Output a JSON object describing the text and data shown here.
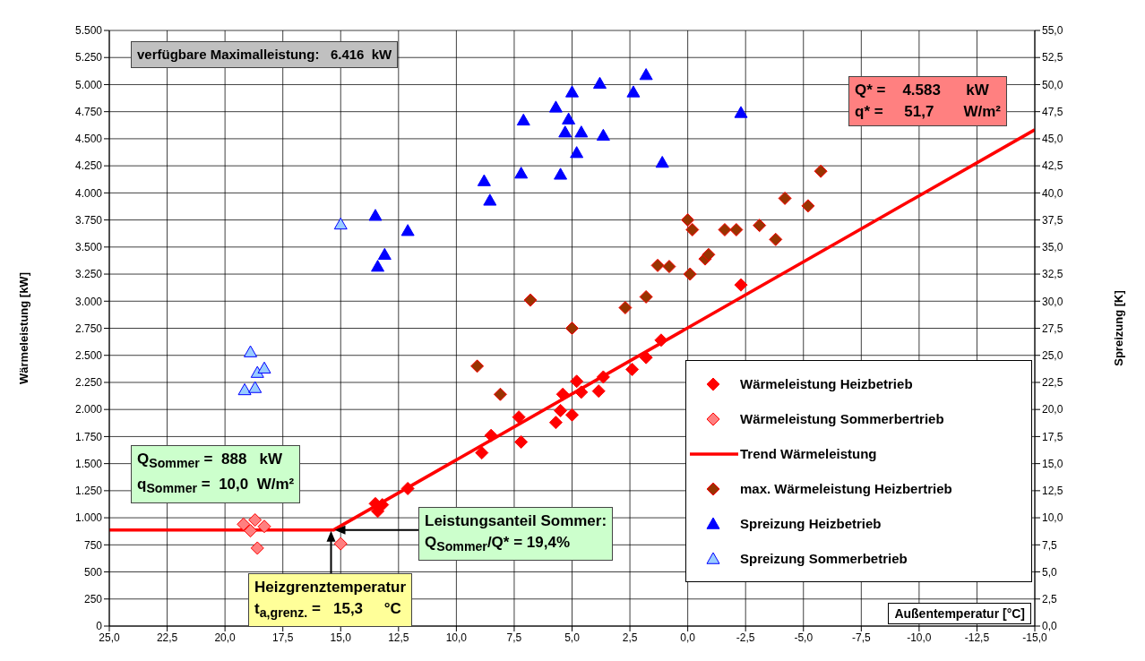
{
  "chart_data": {
    "type": "scatter",
    "xlabel": "Außentemperatur [°C]",
    "ylabel": "Wärmeleistung [kW]",
    "y2label": "Spreizung [K]",
    "xlim": [
      25,
      -15
    ],
    "ylim": [
      0,
      5500
    ],
    "y2lim": [
      0,
      55
    ],
    "xticks": [
      {
        "value": 25,
        "label": "25,0"
      },
      {
        "value": 22.5,
        "label": "22,5"
      },
      {
        "value": 20,
        "label": "20,0"
      },
      {
        "value": 17.5,
        "label": "17,5"
      },
      {
        "value": 15,
        "label": "15,0"
      },
      {
        "value": 12.5,
        "label": "12,5"
      },
      {
        "value": 10,
        "label": "10,0"
      },
      {
        "value": 7.5,
        "label": "7,5"
      },
      {
        "value": 5,
        "label": "5,0"
      },
      {
        "value": 2.5,
        "label": "2,5"
      },
      {
        "value": 0,
        "label": "0,0"
      },
      {
        "value": -2.5,
        "label": "-2,5"
      },
      {
        "value": -5,
        "label": "-5,0"
      },
      {
        "value": -7.5,
        "label": "-7,5"
      },
      {
        "value": -10,
        "label": "-10,0"
      },
      {
        "value": -12.5,
        "label": "-12,5"
      },
      {
        "value": -15,
        "label": "-15,0"
      }
    ],
    "yticks": [
      0,
      250,
      500,
      750,
      {
        "value": 1000,
        "label": "1.000"
      },
      {
        "value": 1250,
        "label": "1.250"
      },
      {
        "value": 1500,
        "label": "1.500"
      },
      {
        "value": 1750,
        "label": "1.750"
      },
      {
        "value": 2000,
        "label": "2.000"
      },
      {
        "value": 2250,
        "label": "2.250"
      },
      {
        "value": 2500,
        "label": "2.500"
      },
      {
        "value": 2750,
        "label": "2.750"
      },
      {
        "value": 3000,
        "label": "3.000"
      },
      {
        "value": 3250,
        "label": "3.250"
      },
      {
        "value": 3500,
        "label": "3.500"
      },
      {
        "value": 3750,
        "label": "3.750"
      },
      {
        "value": 4000,
        "label": "4.000"
      },
      {
        "value": 4250,
        "label": "4.250"
      },
      {
        "value": 4500,
        "label": "4.500"
      },
      {
        "value": 4750,
        "label": "4.750"
      },
      {
        "value": 5000,
        "label": "5.000"
      },
      {
        "value": 5250,
        "label": "5.250"
      },
      {
        "value": 5500,
        "label": "5.500"
      }
    ],
    "y2ticks": [
      {
        "value": 0,
        "label": "0,0"
      },
      {
        "value": 2.5,
        "label": "2,5"
      },
      {
        "value": 5,
        "label": "5,0"
      },
      {
        "value": 7.5,
        "label": "7,5"
      },
      {
        "value": 10,
        "label": "10,0"
      },
      {
        "value": 12.5,
        "label": "12,5"
      },
      {
        "value": 15,
        "label": "15,0"
      },
      {
        "value": 17.5,
        "label": "17,5"
      },
      {
        "value": 20,
        "label": "20,0"
      },
      {
        "value": 22.5,
        "label": "22,5"
      },
      {
        "value": 25,
        "label": "25,0"
      },
      {
        "value": 27.5,
        "label": "27,5"
      },
      {
        "value": 30,
        "label": "30,0"
      },
      {
        "value": 32.5,
        "label": "32,5"
      },
      {
        "value": 35,
        "label": "35,0"
      },
      {
        "value": 37.5,
        "label": "37,5"
      },
      {
        "value": 40,
        "label": "40,0"
      },
      {
        "value": 42.5,
        "label": "42,5"
      },
      {
        "value": 45,
        "label": "45,0"
      },
      {
        "value": 47.5,
        "label": "47,5"
      },
      {
        "value": 50,
        "label": "50,0"
      },
      {
        "value": 52.5,
        "label": "52,5"
      },
      {
        "value": 55,
        "label": "55,0"
      }
    ],
    "grid": true,
    "legend": "bottom right",
    "series": [
      {
        "name": "Wärmeleistung Heizbetrieb",
        "marker": "diamond",
        "color": "#ff0000",
        "x": [
          13.5,
          13.4,
          13.2,
          12.1,
          8.9,
          8.5,
          7.3,
          7.2,
          5.7,
          5.4,
          5.5,
          5.0,
          4.8,
          4.6,
          3.85,
          3.65,
          2.4,
          1.8,
          1.15,
          -2.3
        ],
        "values": [
          1130,
          1060,
          1120,
          1270,
          1600,
          1760,
          1930,
          1700,
          1880,
          2140,
          1990,
          1950,
          2260,
          2160,
          2170,
          2300,
          2370,
          2480,
          2640,
          3150
        ]
      },
      {
        "name": "Wärmeleistung Sommerbertrieb",
        "marker": "diamond",
        "color": "#ff8080",
        "x": [
          19.2,
          18.9,
          18.7,
          18.3,
          18.6,
          15.0
        ],
        "values": [
          940,
          880,
          980,
          920,
          720,
          760
        ]
      },
      {
        "name": "Trend Wärmeleistung",
        "type": "line",
        "marker": "none",
        "color": "#ff0000",
        "x": [
          25,
          15.3,
          -15
        ],
        "values": [
          888,
          888,
          4583
        ]
      },
      {
        "name": "max. Wärmeleistung Heizbertrieb",
        "marker": "diamond",
        "color": "#993300",
        "x": [
          9.1,
          8.1,
          6.8,
          5.0,
          2.7,
          1.8,
          1.3,
          0.8,
          -0.1,
          0.0,
          -0.2,
          -0.75,
          -0.9,
          -1.6,
          -2.1,
          -3.1,
          -3.8,
          -4.2,
          -5.2,
          -5.75
        ],
        "values": [
          2400,
          2140,
          3010,
          2750,
          2940,
          3040,
          3330,
          3320,
          3250,
          3750,
          3660,
          3390,
          3430,
          3660,
          3660,
          3700,
          3570,
          3950,
          3880,
          4200
        ]
      },
      {
        "name": "Spreizung Heizbetrieb",
        "marker": "triangle",
        "axis": "y2",
        "color": "#0000ff",
        "x": [
          13.5,
          12.1,
          13.1,
          13.4,
          8.8,
          8.55,
          7.2,
          7.1,
          5.7,
          5.15,
          5.3,
          4.6,
          4.8,
          5.5,
          5.0,
          3.8,
          3.65,
          2.35,
          1.8,
          -2.3,
          1.1
        ],
        "values": [
          37.9,
          36.5,
          34.3,
          33.2,
          41.1,
          39.3,
          41.8,
          46.7,
          47.9,
          46.8,
          45.6,
          45.6,
          43.7,
          41.7,
          49.3,
          50.1,
          45.3,
          49.3,
          50.9,
          47.4,
          42.8
        ]
      },
      {
        "name": "Spreizung Sommerbetrieb",
        "marker": "triangle",
        "axis": "y2",
        "color": "#99ccff",
        "x": [
          18.9,
          18.6,
          18.3,
          19.15,
          18.7,
          15.0
        ],
        "values": [
          25.3,
          23.4,
          23.8,
          21.8,
          22.0,
          37.1
        ]
      }
    ],
    "annotations": [
      "verfügbare Maximalleistung:   6.416  kW",
      "Q* =    4.583      kW\nq* =     51,7       W/m²",
      "Q$_{Sommer}$ =  888   kW\nq$_{Sommer}$ =  10,0  W/m²",
      {
        "text": "Leistungsanteil Sommer:\nQ$_{Sommer}$/Q* = 19,4%",
        "x": 15.3,
        "y": 888
      },
      {
        "text": "Heizgrenztemperatur\nt$_{a,grenz.}$ =   15,3     °C",
        "x": 15.3,
        "y": 888
      }
    ]
  }
}
